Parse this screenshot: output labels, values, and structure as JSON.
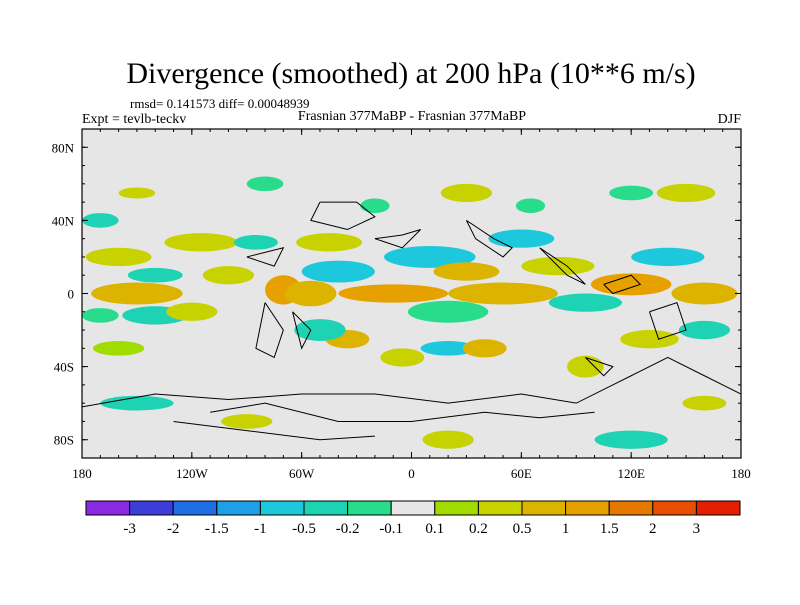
{
  "chart_data": {
    "type": "heatmap",
    "title": "Divergence (smoothed) at 200 hPa (10**6 m/s)",
    "stats": "rmsd= 0.141573 diff= 0.00048939",
    "experiment": "Expt = tevlb-teckv",
    "subtitle": "Frasnian 377MaBP - Frasnian 377MaBP",
    "season": "DJF",
    "xlim": [
      -180,
      180
    ],
    "ylim": [
      -90,
      90
    ],
    "x_ticks": [
      {
        "value": -180,
        "label": "180"
      },
      {
        "value": -120,
        "label": "120W"
      },
      {
        "value": -60,
        "label": "60W"
      },
      {
        "value": 0,
        "label": "0"
      },
      {
        "value": 60,
        "label": "60E"
      },
      {
        "value": 120,
        "label": "120E"
      },
      {
        "value": 180,
        "label": "180"
      }
    ],
    "y_ticks": [
      {
        "value": 80,
        "label": "80N"
      },
      {
        "value": 40,
        "label": "40N"
      },
      {
        "value": 0,
        "label": "0"
      },
      {
        "value": -40,
        "label": "40S"
      },
      {
        "value": -80,
        "label": "80S"
      }
    ],
    "colorbar": {
      "colors": [
        "#8a2be2",
        "#3c3cd8",
        "#1e6ee6",
        "#1ea0e6",
        "#1ec8dc",
        "#1ed2b4",
        "#28dc8c",
        "#e6e6e6",
        "#a0dc00",
        "#c8d200",
        "#dcb400",
        "#e6a000",
        "#e67800",
        "#e65000",
        "#e61e00"
      ],
      "labels": [
        "-3",
        "-2",
        "-1.5",
        "-1",
        "-0.5",
        "-0.2",
        "-0.1",
        "0.1",
        "0.2",
        "0.5",
        "1",
        "1.5",
        "2",
        "3"
      ]
    },
    "fields": [
      {
        "lon": -160,
        "lat": 20,
        "rx": 18,
        "ry": 5,
        "level": 9
      },
      {
        "lon": -150,
        "lat": 0,
        "rx": 25,
        "ry": 6,
        "level": 10
      },
      {
        "lon": -140,
        "lat": 10,
        "rx": 15,
        "ry": 4,
        "level": 5
      },
      {
        "lon": -140,
        "lat": -12,
        "rx": 18,
        "ry": 5,
        "level": 5
      },
      {
        "lon": -170,
        "lat": -12,
        "rx": 10,
        "ry": 4,
        "level": 6
      },
      {
        "lon": -160,
        "lat": -30,
        "rx": 14,
        "ry": 4,
        "level": 8
      },
      {
        "lon": -120,
        "lat": -10,
        "rx": 14,
        "ry": 5,
        "level": 9
      },
      {
        "lon": -100,
        "lat": 10,
        "rx": 14,
        "ry": 5,
        "level": 9
      },
      {
        "lon": -115,
        "lat": 28,
        "rx": 20,
        "ry": 5,
        "level": 9
      },
      {
        "lon": -85,
        "lat": 28,
        "rx": 12,
        "ry": 4,
        "level": 5
      },
      {
        "lon": -70,
        "lat": 2,
        "rx": 10,
        "ry": 8,
        "level": 11
      },
      {
        "lon": -55,
        "lat": 0,
        "rx": 14,
        "ry": 7,
        "level": 10
      },
      {
        "lon": -45,
        "lat": 28,
        "rx": 18,
        "ry": 5,
        "level": 9
      },
      {
        "lon": -40,
        "lat": 12,
        "rx": 20,
        "ry": 6,
        "level": 4
      },
      {
        "lon": -35,
        "lat": -25,
        "rx": 12,
        "ry": 5,
        "level": 10
      },
      {
        "lon": -50,
        "lat": -20,
        "rx": 14,
        "ry": 6,
        "level": 5
      },
      {
        "lon": -20,
        "lat": 48,
        "rx": 8,
        "ry": 4,
        "level": 6
      },
      {
        "lon": -10,
        "lat": 0,
        "rx": 30,
        "ry": 5,
        "level": 11
      },
      {
        "lon": 10,
        "lat": 20,
        "rx": 25,
        "ry": 6,
        "level": 4
      },
      {
        "lon": 30,
        "lat": 12,
        "rx": 18,
        "ry": 5,
        "level": 10
      },
      {
        "lon": 20,
        "lat": -10,
        "rx": 22,
        "ry": 6,
        "level": 6
      },
      {
        "lon": -5,
        "lat": -35,
        "rx": 12,
        "ry": 5,
        "level": 9
      },
      {
        "lon": 20,
        "lat": -30,
        "rx": 15,
        "ry": 4,
        "level": 4
      },
      {
        "lon": 40,
        "lat": -30,
        "rx": 12,
        "ry": 5,
        "level": 10
      },
      {
        "lon": 50,
        "lat": 0,
        "rx": 30,
        "ry": 6,
        "level": 10
      },
      {
        "lon": 60,
        "lat": 30,
        "rx": 18,
        "ry": 5,
        "level": 4
      },
      {
        "lon": 65,
        "lat": 48,
        "rx": 8,
        "ry": 4,
        "level": 6
      },
      {
        "lon": 80,
        "lat": 15,
        "rx": 20,
        "ry": 5,
        "level": 9
      },
      {
        "lon": 95,
        "lat": -5,
        "rx": 20,
        "ry": 5,
        "level": 5
      },
      {
        "lon": 120,
        "lat": 5,
        "rx": 22,
        "ry": 6,
        "level": 11
      },
      {
        "lon": 140,
        "lat": 20,
        "rx": 20,
        "ry": 5,
        "level": 4
      },
      {
        "lon": 160,
        "lat": 0,
        "rx": 18,
        "ry": 6,
        "level": 10
      },
      {
        "lon": 160,
        "lat": -20,
        "rx": 14,
        "ry": 5,
        "level": 5
      },
      {
        "lon": 130,
        "lat": -25,
        "rx": 16,
        "ry": 5,
        "level": 9
      },
      {
        "lon": 95,
        "lat": -40,
        "rx": 10,
        "ry": 6,
        "level": 9
      },
      {
        "lon": 150,
        "lat": 55,
        "rx": 16,
        "ry": 5,
        "level": 9
      },
      {
        "lon": 120,
        "lat": 55,
        "rx": 12,
        "ry": 4,
        "level": 6
      },
      {
        "lon": 30,
        "lat": 55,
        "rx": 14,
        "ry": 5,
        "level": 9
      },
      {
        "lon": -80,
        "lat": 60,
        "rx": 10,
        "ry": 4,
        "level": 6
      },
      {
        "lon": -150,
        "lat": 55,
        "rx": 10,
        "ry": 3,
        "level": 9
      },
      {
        "lon": -170,
        "lat": 40,
        "rx": 10,
        "ry": 4,
        "level": 5
      },
      {
        "lon": -150,
        "lat": -60,
        "rx": 20,
        "ry": 4,
        "level": 5
      },
      {
        "lon": 20,
        "lat": -80,
        "rx": 14,
        "ry": 5,
        "level": 9
      },
      {
        "lon": 120,
        "lat": -80,
        "rx": 20,
        "ry": 5,
        "level": 5
      },
      {
        "lon": 160,
        "lat": -60,
        "rx": 12,
        "ry": 4,
        "level": 9
      },
      {
        "lon": -90,
        "lat": -70,
        "rx": 14,
        "ry": 4,
        "level": 9
      }
    ],
    "coastlines": [
      [
        [
          -50,
          50
        ],
        [
          -30,
          50
        ],
        [
          -20,
          42
        ],
        [
          -35,
          35
        ],
        [
          -55,
          40
        ],
        [
          -50,
          50
        ]
      ],
      [
        [
          -20,
          30
        ],
        [
          -5,
          32
        ],
        [
          5,
          35
        ],
        [
          -5,
          25
        ],
        [
          -20,
          30
        ]
      ],
      [
        [
          30,
          40
        ],
        [
          45,
          30
        ],
        [
          55,
          25
        ],
        [
          50,
          20
        ],
        [
          35,
          30
        ],
        [
          30,
          40
        ]
      ],
      [
        [
          70,
          25
        ],
        [
          85,
          15
        ],
        [
          95,
          5
        ],
        [
          85,
          10
        ],
        [
          70,
          25
        ]
      ],
      [
        [
          105,
          5
        ],
        [
          120,
          10
        ],
        [
          125,
          5
        ],
        [
          110,
          0
        ],
        [
          105,
          5
        ]
      ],
      [
        [
          130,
          -10
        ],
        [
          145,
          -5
        ],
        [
          150,
          -20
        ],
        [
          135,
          -25
        ],
        [
          130,
          -10
        ]
      ],
      [
        [
          -180,
          -62
        ],
        [
          -140,
          -55
        ],
        [
          -100,
          -58
        ],
        [
          -60,
          -55
        ],
        [
          -20,
          -55
        ],
        [
          20,
          -60
        ],
        [
          60,
          -55
        ],
        [
          90,
          -60
        ],
        [
          120,
          -45
        ],
        [
          140,
          -35
        ],
        [
          160,
          -45
        ],
        [
          180,
          -55
        ]
      ],
      [
        [
          -110,
          -65
        ],
        [
          -80,
          -60
        ],
        [
          -40,
          -70
        ],
        [
          0,
          -70
        ],
        [
          40,
          -65
        ],
        [
          70,
          -68
        ],
        [
          100,
          -65
        ]
      ],
      [
        [
          -130,
          -70
        ],
        [
          -90,
          -75
        ],
        [
          -50,
          -80
        ],
        [
          -20,
          -78
        ]
      ],
      [
        [
          -80,
          -5
        ],
        [
          -70,
          -20
        ],
        [
          -75,
          -35
        ],
        [
          -85,
          -30
        ],
        [
          -80,
          -5
        ]
      ],
      [
        [
          -65,
          -10
        ],
        [
          -60,
          -30
        ],
        [
          -55,
          -20
        ],
        [
          -65,
          -10
        ]
      ],
      [
        [
          -90,
          20
        ],
        [
          -70,
          25
        ],
        [
          -75,
          15
        ],
        [
          -90,
          20
        ]
      ],
      [
        [
          95,
          -35
        ],
        [
          110,
          -40
        ],
        [
          105,
          -45
        ],
        [
          95,
          -35
        ]
      ]
    ]
  }
}
